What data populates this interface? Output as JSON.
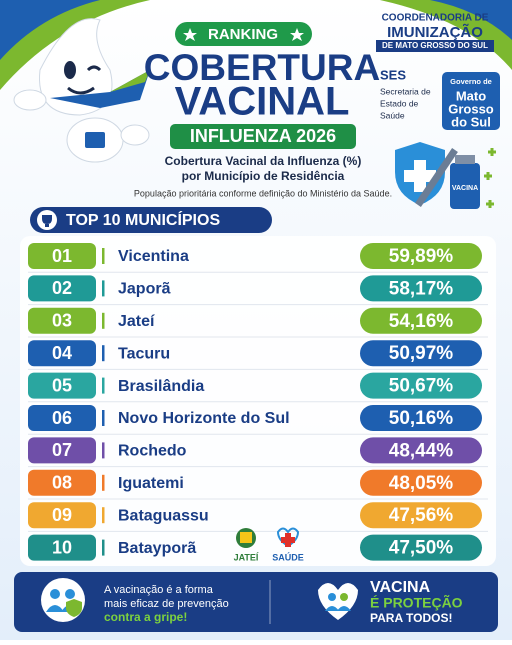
{
  "header": {
    "badge": "RANKING",
    "title_line1": "COBERTURA",
    "title_line2": "VACINAL",
    "subtitle_badge": "INFLUENZA 2026",
    "description_line1": "Cobertura Vacinal da Influenza (%)",
    "description_line2": "por Município de Residência",
    "note": "População prioritária conforme definição do Ministério da Saúde."
  },
  "logos": {
    "coord_line1": "COORDENADORIA DE",
    "coord_line2": "IMUNIZAÇÃO",
    "coord_line3": "DE MATO GROSSO DO SUL",
    "ses": "SES",
    "ses_lines": [
      "Secretaria de",
      "Estado de",
      "Saúde"
    ],
    "gov_lines": [
      "Governo de",
      "Mato",
      "Grosso",
      "do Sul"
    ],
    "vial": "VACINA",
    "jatei": "JATEÍ",
    "saude": "SAÚDE"
  },
  "table": {
    "title": "TOP 10 MUNICÍPIOS",
    "rows": [
      [
        "01",
        "Vicentina",
        "59,89%"
      ],
      [
        "02",
        "Japorã",
        "58,17%"
      ],
      [
        "03",
        "Jateí",
        "54,16%"
      ],
      [
        "04",
        "Tacuru",
        "50,97%"
      ],
      [
        "05",
        "Brasilândia",
        "50,67%"
      ],
      [
        "06",
        "Novo Horizonte do Sul",
        "50,16%"
      ],
      [
        "07",
        "Rochedo",
        "48,44%"
      ],
      [
        "08",
        "Iguatemi",
        "48,05%"
      ],
      [
        "09",
        "Bataguassu",
        "47,56%"
      ],
      [
        "10",
        "Batayporã",
        "47,50%"
      ]
    ]
  },
  "footer": {
    "left_lines": [
      "A vacinação é a forma",
      "mais eficaz de prevenção",
      "contra a gripe!"
    ],
    "right_lines": [
      "VACINA",
      "É PROTEÇÃO",
      "PARA TODOS!"
    ]
  }
}
